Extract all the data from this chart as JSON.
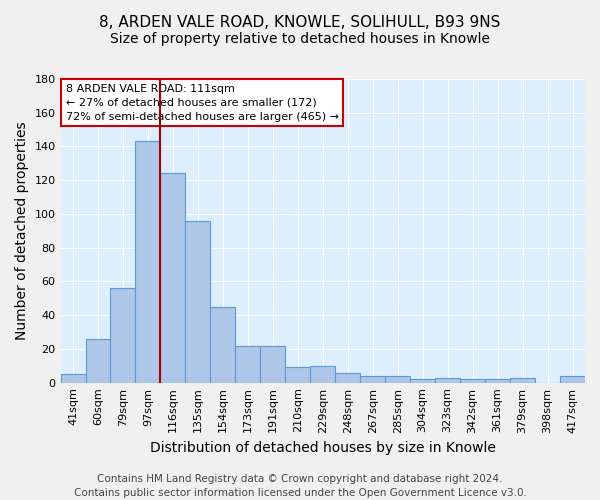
{
  "title_line1": "8, ARDEN VALE ROAD, KNOWLE, SOLIHULL, B93 9NS",
  "title_line2": "Size of property relative to detached houses in Knowle",
  "xlabel": "Distribution of detached houses by size in Knowle",
  "ylabel": "Number of detached properties",
  "bar_labels": [
    "41sqm",
    "60sqm",
    "79sqm",
    "97sqm",
    "116sqm",
    "135sqm",
    "154sqm",
    "173sqm",
    "191sqm",
    "210sqm",
    "229sqm",
    "248sqm",
    "267sqm",
    "285sqm",
    "304sqm",
    "323sqm",
    "342sqm",
    "361sqm",
    "379sqm",
    "398sqm",
    "417sqm"
  ],
  "bar_values": [
    5,
    26,
    56,
    143,
    124,
    96,
    45,
    22,
    22,
    9,
    10,
    6,
    4,
    4,
    2,
    3,
    2,
    2,
    3,
    0,
    4
  ],
  "bar_color": "#aec6e8",
  "bar_edge_color": "#5b9bd5",
  "background_color": "#ddeeff",
  "grid_color": "#ffffff",
  "vline_x_index": 3.5,
  "annotation_text_line1": "8 ARDEN VALE ROAD: 111sqm",
  "annotation_text_line2": "← 27% of detached houses are smaller (172)",
  "annotation_text_line3": "72% of semi-detached houses are larger (465) →",
  "annotation_box_color": "#ffffff",
  "annotation_box_edge": "#cc0000",
  "vline_color": "#aa0000",
  "footer_line1": "Contains HM Land Registry data © Crown copyright and database right 2024.",
  "footer_line2": "Contains public sector information licensed under the Open Government Licence v3.0.",
  "ylim": [
    0,
    180
  ],
  "yticks": [
    0,
    20,
    40,
    60,
    80,
    100,
    120,
    140,
    160,
    180
  ],
  "title_fontsize": 11,
  "subtitle_fontsize": 10,
  "axis_label_fontsize": 10,
  "tick_fontsize": 8,
  "footer_fontsize": 7.5
}
